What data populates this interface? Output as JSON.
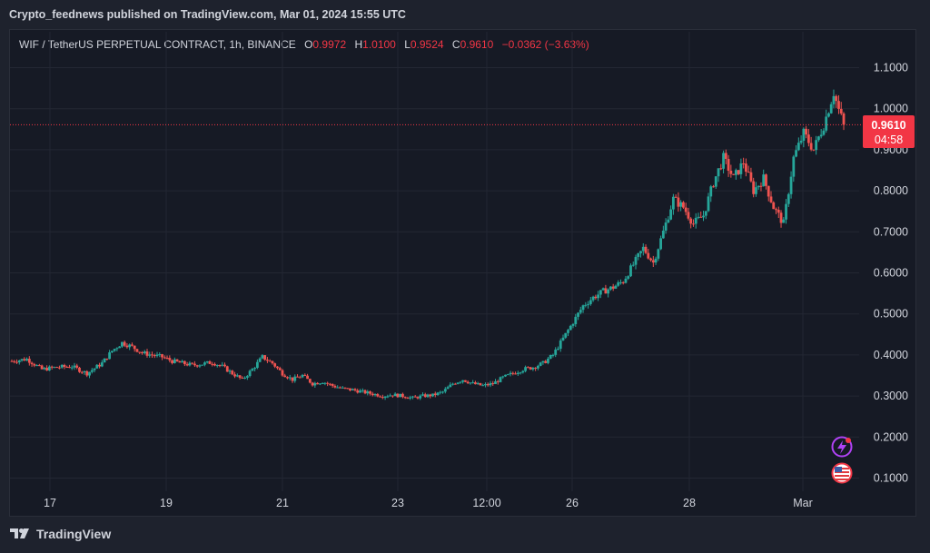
{
  "publish_line": "Crypto_feednews published on TradingView.com, Mar 01, 2024 15:55 UTC",
  "legend": {
    "symbol": "WIF / TetherUS PERPETUAL CONTRACT, 1h, BINANCE",
    "open_label": "O",
    "open": "0.9972",
    "high_label": "H",
    "high": "1.0100",
    "low_label": "L",
    "low": "0.9524",
    "close_label": "C",
    "close": "0.9610",
    "change": "−0.0362 (−3.63%)"
  },
  "price_tag": {
    "price": "0.9610",
    "countdown": "04:58"
  },
  "footer": {
    "brand": "TradingView"
  },
  "colors": {
    "up": "#26a69a",
    "down": "#ef5350",
    "tag": "#f23645",
    "bg": "#161a25"
  },
  "icons": [
    "lightning-icon",
    "us-flag-icon",
    "tradingview-logo-icon"
  ],
  "chart_data": {
    "type": "candlestick",
    "timeframe": "1h",
    "y_ticks": [
      "0.1000",
      "0.2000",
      "0.3000",
      "0.4000",
      "0.5000",
      "0.6000",
      "0.7000",
      "0.8000",
      "0.9000",
      "1.0000",
      "1.1000"
    ],
    "x_ticks": [
      "17",
      "19",
      "21",
      "23",
      "12:00",
      "26",
      "28",
      "Mar"
    ],
    "ylim": [
      0.05,
      1.14
    ],
    "last_price": 0.961,
    "grid": true,
    "price_path": [
      [
        0,
        0.385
      ],
      [
        3,
        0.39
      ],
      [
        6,
        0.365
      ],
      [
        9,
        0.37
      ],
      [
        12,
        0.372
      ],
      [
        15,
        0.355
      ],
      [
        18,
        0.38
      ],
      [
        20,
        0.41
      ],
      [
        22,
        0.43
      ],
      [
        24,
        0.42
      ],
      [
        26,
        0.405
      ],
      [
        28,
        0.4
      ],
      [
        30,
        0.395
      ],
      [
        32,
        0.385
      ],
      [
        34,
        0.38
      ],
      [
        36,
        0.375
      ],
      [
        38,
        0.378
      ],
      [
        40,
        0.382
      ],
      [
        42,
        0.372
      ],
      [
        44,
        0.355
      ],
      [
        46,
        0.34
      ],
      [
        48,
        0.365
      ],
      [
        50,
        0.395
      ],
      [
        52,
        0.38
      ],
      [
        54,
        0.355
      ],
      [
        56,
        0.34
      ],
      [
        58,
        0.35
      ],
      [
        60,
        0.33
      ],
      [
        62,
        0.335
      ],
      [
        64,
        0.325
      ],
      [
        66,
        0.318
      ],
      [
        68,
        0.315
      ],
      [
        70,
        0.31
      ],
      [
        72,
        0.305
      ],
      [
        74,
        0.3
      ],
      [
        76,
        0.303
      ],
      [
        78,
        0.3
      ],
      [
        80,
        0.295
      ],
      [
        82,
        0.3
      ],
      [
        84,
        0.302
      ],
      [
        86,
        0.31
      ],
      [
        88,
        0.33
      ],
      [
        90,
        0.34
      ],
      [
        92,
        0.33
      ],
      [
        94,
        0.325
      ],
      [
        96,
        0.33
      ],
      [
        98,
        0.345
      ],
      [
        100,
        0.355
      ],
      [
        102,
        0.365
      ],
      [
        104,
        0.37
      ],
      [
        106,
        0.38
      ],
      [
        108,
        0.4
      ],
      [
        110,
        0.44
      ],
      [
        112,
        0.48
      ],
      [
        114,
        0.52
      ],
      [
        116,
        0.54
      ],
      [
        118,
        0.555
      ],
      [
        120,
        0.565
      ],
      [
        122,
        0.58
      ],
      [
        124,
        0.62
      ],
      [
        126,
        0.66
      ],
      [
        128,
        0.625
      ],
      [
        130,
        0.7
      ],
      [
        132,
        0.78
      ],
      [
        134,
        0.76
      ],
      [
        136,
        0.72
      ],
      [
        138,
        0.74
      ],
      [
        140,
        0.82
      ],
      [
        142,
        0.88
      ],
      [
        144,
        0.83
      ],
      [
        146,
        0.87
      ],
      [
        148,
        0.8
      ],
      [
        150,
        0.83
      ],
      [
        152,
        0.76
      ],
      [
        154,
        0.72
      ],
      [
        156,
        0.88
      ],
      [
        158,
        0.94
      ],
      [
        160,
        0.9
      ],
      [
        162,
        0.96
      ],
      [
        164,
        1.04
      ],
      [
        165,
        0.997
      ],
      [
        166,
        0.961
      ]
    ]
  }
}
